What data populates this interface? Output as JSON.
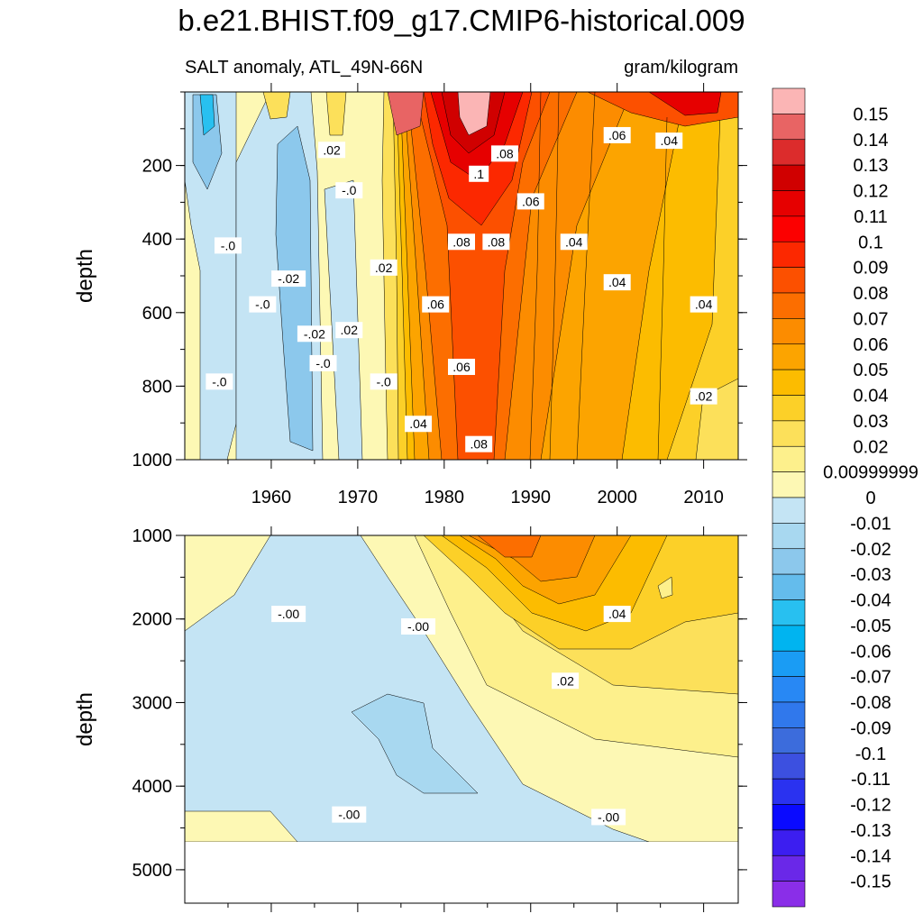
{
  "chart_data": {
    "type": "heatmap",
    "title": "b.e21.BHIST.f09_g17.CMIP6-historical.009",
    "subtitle_left": "SALT anomaly, ATL_49N-66N",
    "subtitle_right": "gram/kilogram",
    "xlabel": "",
    "ylabel": "depth",
    "xlim": [
      1950,
      2014
    ],
    "x_ticks": [
      "1960",
      "1970",
      "1980",
      "1990",
      "2000",
      "2010"
    ],
    "panels": [
      {
        "name": "upper",
        "ylim": [
          0,
          1000
        ],
        "y_ticks": [
          "200",
          "400",
          "600",
          "800",
          "1000"
        ],
        "contour_labels": [
          {
            "text": ".02",
            "x": 1967,
            "y": 160
          },
          {
            "text": "-.0",
            "x": 1969,
            "y": 270
          },
          {
            "text": "-.0",
            "x": 1955,
            "y": 420
          },
          {
            "text": "-.02",
            "x": 1962,
            "y": 510
          },
          {
            "text": ".02",
            "x": 1973,
            "y": 480
          },
          {
            "text": "-.0",
            "x": 1959,
            "y": 580
          },
          {
            "text": "-.02",
            "x": 1965,
            "y": 660
          },
          {
            "text": ".02",
            "x": 1969,
            "y": 650
          },
          {
            "text": "-.0",
            "x": 1966,
            "y": 740
          },
          {
            "text": "-.0",
            "x": 1954,
            "y": 790
          },
          {
            "text": "-.0",
            "x": 1973,
            "y": 790
          },
          {
            "text": ".04",
            "x": 1977,
            "y": 905
          },
          {
            "text": ".06",
            "x": 1979,
            "y": 580
          },
          {
            "text": ".06",
            "x": 1982,
            "y": 750
          },
          {
            "text": ".08",
            "x": 1982,
            "y": 410
          },
          {
            "text": ".08",
            "x": 1986,
            "y": 410
          },
          {
            "text": ".08",
            "x": 1984,
            "y": 960
          },
          {
            "text": ".1",
            "x": 1984,
            "y": 225
          },
          {
            "text": ".08",
            "x": 1987,
            "y": 170
          },
          {
            "text": ".06",
            "x": 1990,
            "y": 300
          },
          {
            "text": ".04",
            "x": 1995,
            "y": 410
          },
          {
            "text": ".04",
            "x": 2000,
            "y": 520
          },
          {
            "text": ".06",
            "x": 2000,
            "y": 120
          },
          {
            "text": ".04",
            "x": 2006,
            "y": 135
          },
          {
            "text": ".04",
            "x": 2010,
            "y": 580
          },
          {
            "text": ".02",
            "x": 2010,
            "y": 830
          }
        ]
      },
      {
        "name": "lower",
        "ylim": [
          1000,
          5400
        ],
        "bottom_depth": 4630,
        "y_ticks": [
          "1000",
          "2000",
          "3000",
          "4000",
          "5000"
        ],
        "contour_labels": [
          {
            "text": "-.00",
            "x": 1962,
            "y": 1950
          },
          {
            "text": "-.00",
            "x": 1977,
            "y": 2100
          },
          {
            "text": ".04",
            "x": 2000,
            "y": 1950
          },
          {
            "text": ".02",
            "x": 1994,
            "y": 2750
          },
          {
            "text": "-.00",
            "x": 1969,
            "y": 4350
          },
          {
            "text": "-.00",
            "x": 1999,
            "y": 4380
          }
        ]
      }
    ],
    "colorbar": {
      "levels": [
        "0.15",
        "0.14",
        "0.13",
        "0.12",
        "0.11",
        "0.1",
        "0.09",
        "0.08",
        "0.07",
        "0.06",
        "0.05",
        "0.04",
        "0.03",
        "0.02",
        "0.00999999",
        "0",
        "-0.01",
        "-0.02",
        "-0.03",
        "-0.04",
        "-0.05",
        "-0.06",
        "-0.07",
        "-0.08",
        "-0.09",
        "-0.1",
        "-0.11",
        "-0.12",
        "-0.13",
        "-0.14",
        "-0.15"
      ],
      "colors": [
        "#fbb5b5",
        "#e86464",
        "#dc2c2c",
        "#d00000",
        "#e60000",
        "#fc0000",
        "#fc2800",
        "#fc5000",
        "#fc6e00",
        "#fc8c00",
        "#fca400",
        "#fcbc00",
        "#fcd028",
        "#fce05a",
        "#fdf08c",
        "#fdf8b4",
        "#c4e4f4",
        "#a8d8f0",
        "#8cc8ec",
        "#64bcec",
        "#28c0f0",
        "#00b4f0",
        "#1a9cf4",
        "#2888f4",
        "#3078ec",
        "#3c6cdc",
        "#3c50e0",
        "#2a32f0",
        "#0a0aff",
        "#3c1ef0",
        "#6a28e8",
        "#8a2ee8"
      ]
    }
  }
}
